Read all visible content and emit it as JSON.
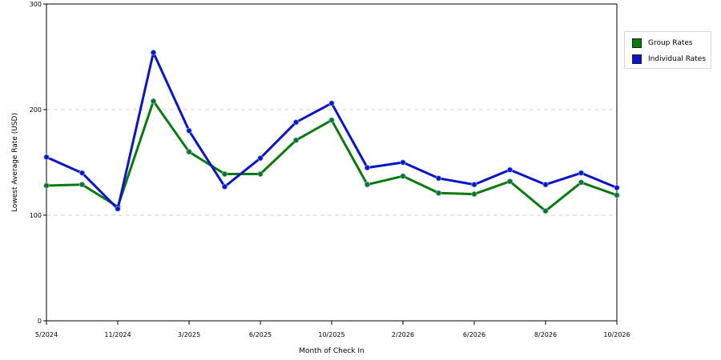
{
  "chart_data": {
    "type": "line",
    "xlabel": "Month of Check In",
    "ylabel": "Lowest Average Rate (USD)",
    "ylim": [
      0,
      300
    ],
    "y_ticks": [
      0,
      100,
      200,
      300
    ],
    "x_ticks": [
      "5/2024",
      "11/2024",
      "3/2025",
      "6/2025",
      "10/2025",
      "2/2026",
      "6/2026",
      "8/2026",
      "10/2026"
    ],
    "grid": "horizontal dashed",
    "legend_position": "right",
    "series": [
      {
        "name": "Group Rates",
        "color": "#0a7a0a",
        "values": [
          128,
          129,
          108,
          208,
          160,
          139,
          139,
          171,
          190,
          129,
          137,
          121,
          120,
          132,
          104,
          131,
          119
        ]
      },
      {
        "name": "Individual Rates",
        "color": "#0a14c8",
        "values": [
          155,
          140,
          106,
          254,
          180,
          127,
          154,
          188,
          206,
          145,
          150,
          135,
          129,
          143,
          129,
          140,
          126
        ]
      }
    ]
  }
}
